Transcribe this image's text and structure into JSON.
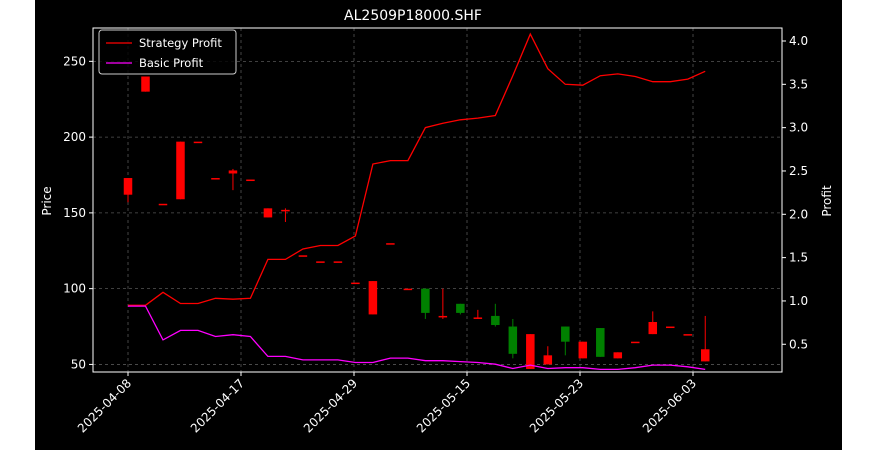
{
  "chart_data": {
    "type": "candlestick",
    "title": "AL2509P18000.SHF",
    "ylabel_left": "Price",
    "ylabel_right": "Profit",
    "ylim_left": [
      45,
      272
    ],
    "ylim_right": [
      0.18,
      4.15
    ],
    "left_ticks": [
      50,
      100,
      150,
      200,
      250
    ],
    "right_ticks": [
      0.5,
      1.0,
      1.5,
      2.0,
      2.5,
      3.0,
      3.5,
      4.0
    ],
    "x_tick_labels": [
      {
        "index": 0,
        "label": "2025-04-08"
      },
      {
        "index": 5,
        "label": "2025-04-17"
      },
      {
        "index": 10,
        "label": "2025-04-29"
      },
      {
        "index": 15,
        "label": "2025-05-15"
      },
      {
        "index": 20,
        "label": "2025-05-23"
      },
      {
        "index": 25,
        "label": "2025-06-03"
      }
    ],
    "grid": true,
    "legend_position": "top-left",
    "colors": {
      "up": "#ff0000",
      "down": "#008000",
      "strategy": "#ff0000",
      "basic": "#ff00ff",
      "grid": "#555555"
    },
    "candles": [
      {
        "o": 162,
        "h": 173,
        "l": 157,
        "c": 173
      },
      {
        "o": 230,
        "h": 240,
        "l": 230,
        "c": 240
      },
      {
        "o": 156,
        "h": 156,
        "l": 156,
        "c": 156
      },
      {
        "o": 159,
        "h": 197,
        "l": 159,
        "c": 197
      },
      {
        "o": 197,
        "h": 197,
        "l": 197,
        "c": 197
      },
      {
        "o": 173,
        "h": 173,
        "l": 173,
        "c": 173
      },
      {
        "o": 176,
        "h": 179,
        "l": 165,
        "c": 178
      },
      {
        "o": 172,
        "h": 172,
        "l": 172,
        "c": 172
      },
      {
        "o": 147,
        "h": 153,
        "l": 147,
        "c": 153
      },
      {
        "o": 151,
        "h": 153,
        "l": 144,
        "c": 152
      },
      {
        "o": 122,
        "h": 122,
        "l": 122,
        "c": 122
      },
      {
        "o": 118,
        "h": 118,
        "l": 118,
        "c": 118
      },
      {
        "o": 118,
        "h": 118,
        "l": 118,
        "c": 118
      },
      {
        "o": 104,
        "h": 104,
        "l": 104,
        "c": 104
      },
      {
        "o": 83,
        "h": 105,
        "l": 83,
        "c": 105
      },
      {
        "o": 130,
        "h": 130,
        "l": 130,
        "c": 130
      },
      {
        "o": 100,
        "h": 100,
        "l": 100,
        "c": 100
      },
      {
        "o": 100,
        "h": 100,
        "l": 80,
        "c": 84
      },
      {
        "o": 81,
        "h": 100,
        "l": 80,
        "c": 82
      },
      {
        "o": 90,
        "h": 90,
        "l": 83,
        "c": 84
      },
      {
        "o": 80,
        "h": 86,
        "l": 80,
        "c": 81
      },
      {
        "o": 82,
        "h": 90,
        "l": 75,
        "c": 76
      },
      {
        "o": 75,
        "h": 80,
        "l": 54,
        "c": 57
      },
      {
        "o": 47,
        "h": 70,
        "l": 47,
        "c": 70
      },
      {
        "o": 50,
        "h": 62,
        "l": 50,
        "c": 56
      },
      {
        "o": 75,
        "h": 75,
        "l": 56,
        "c": 65
      },
      {
        "o": 54,
        "h": 65,
        "l": 54,
        "c": 65
      },
      {
        "o": 74,
        "h": 74,
        "l": 55,
        "c": 55
      },
      {
        "o": 54,
        "h": 58,
        "l": 54,
        "c": 58
      },
      {
        "o": 65,
        "h": 65,
        "l": 65,
        "c": 65
      },
      {
        "o": 70,
        "h": 85,
        "l": 70,
        "c": 78
      },
      {
        "o": 75,
        "h": 75,
        "l": 75,
        "c": 75
      },
      {
        "o": 70,
        "h": 70,
        "l": 70,
        "c": 70
      },
      {
        "o": 52,
        "h": 82,
        "l": 52,
        "c": 60
      }
    ],
    "series": [
      {
        "name": "Strategy Profit",
        "axis": "right",
        "values": [
          0.95,
          0.95,
          1.1,
          0.97,
          0.97,
          1.03,
          1.02,
          1.03,
          1.48,
          1.48,
          1.6,
          1.64,
          1.64,
          1.75,
          2.58,
          2.62,
          2.62,
          3.0,
          3.05,
          3.09,
          3.11,
          3.14,
          3.6,
          4.08,
          3.68,
          3.5,
          3.49,
          3.6,
          3.62,
          3.59,
          3.53,
          3.53,
          3.56,
          3.65
        ]
      },
      {
        "name": "Basic Profit",
        "axis": "right",
        "values": [
          0.94,
          0.94,
          0.55,
          0.66,
          0.66,
          0.59,
          0.61,
          0.59,
          0.36,
          0.36,
          0.32,
          0.32,
          0.32,
          0.29,
          0.29,
          0.34,
          0.34,
          0.31,
          0.31,
          0.3,
          0.29,
          0.27,
          0.22,
          0.26,
          0.22,
          0.23,
          0.23,
          0.21,
          0.21,
          0.23,
          0.26,
          0.26,
          0.24,
          0.21
        ]
      }
    ]
  }
}
